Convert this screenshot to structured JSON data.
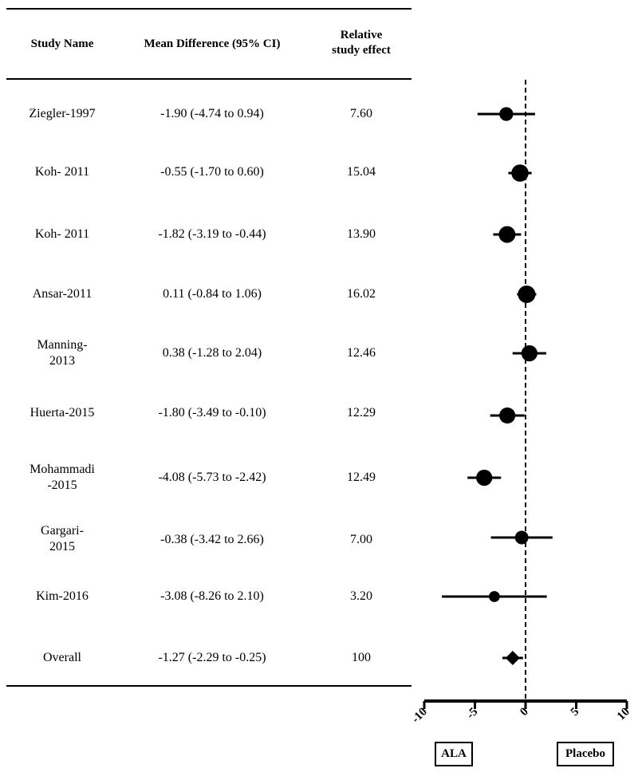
{
  "headers": {
    "study_name": "Study Name",
    "mean_difference": "Mean Difference (95% CI)",
    "relative_effect_line1": "Relative",
    "relative_effect_line2": "study effect"
  },
  "chart_data": {
    "type": "forest",
    "xlim": [
      -10,
      10
    ],
    "xticks": [
      -10,
      -5,
      0,
      5,
      10
    ],
    "xtick_labels": [
      "-10",
      "-5",
      "0",
      "5",
      "10"
    ],
    "reference_line": 0,
    "left_favors_label": "ALA",
    "right_favors_label": "Placebo",
    "studies": [
      {
        "name_line1": "Ziegler-1997",
        "name_line2": "",
        "ci_text": "-1.90 (-4.74 to 0.94)",
        "effect_text": "7.60",
        "mean": -1.9,
        "lower": -4.74,
        "upper": 0.94,
        "weight": 7.6
      },
      {
        "name_line1": "Koh- 2011",
        "name_line2": "",
        "ci_text": "-0.55 (-1.70 to 0.60)",
        "effect_text": "15.04",
        "mean": -0.55,
        "lower": -1.7,
        "upper": 0.6,
        "weight": 15.04
      },
      {
        "name_line1": "Koh- 2011",
        "name_line2": "",
        "ci_text": "-1.82 (-3.19 to -0.44)",
        "effect_text": "13.90",
        "mean": -1.82,
        "lower": -3.19,
        "upper": -0.44,
        "weight": 13.9
      },
      {
        "name_line1": "Ansar-2011",
        "name_line2": "",
        "ci_text": "0.11 (-0.84 to 1.06)",
        "effect_text": "16.02",
        "mean": 0.11,
        "lower": -0.84,
        "upper": 1.06,
        "weight": 16.02
      },
      {
        "name_line1": "Manning-",
        "name_line2": "2013",
        "ci_text": "0.38 (-1.28 to 2.04)",
        "effect_text": "12.46",
        "mean": 0.38,
        "lower": -1.28,
        "upper": 2.04,
        "weight": 12.46
      },
      {
        "name_line1": "Huerta-2015",
        "name_line2": "",
        "ci_text": "-1.80 (-3.49 to -0.10)",
        "effect_text": "12.29",
        "mean": -1.8,
        "lower": -3.49,
        "upper": -0.1,
        "weight": 12.29
      },
      {
        "name_line1": "Mohammadi",
        "name_line2": "-2015",
        "ci_text": "-4.08 (-5.73 to -2.42)",
        "effect_text": "12.49",
        "mean": -4.08,
        "lower": -5.73,
        "upper": -2.42,
        "weight": 12.49
      },
      {
        "name_line1": "Gargari-",
        "name_line2": "2015",
        "ci_text": "-0.38 (-3.42 to 2.66)",
        "effect_text": "7.00",
        "mean": -0.38,
        "lower": -3.42,
        "upper": 2.66,
        "weight": 7.0
      },
      {
        "name_line1": "Kim-2016",
        "name_line2": "",
        "ci_text": "-3.08 (-8.26 to 2.10)",
        "effect_text": "3.20",
        "mean": -3.08,
        "lower": -8.26,
        "upper": 2.1,
        "weight": 3.2
      }
    ],
    "overall": {
      "name": "Overall",
      "ci_text": "-1.27 (-2.29 to -0.25)",
      "effect_text": "100",
      "mean": -1.27,
      "lower": -2.29,
      "upper": -0.25
    }
  }
}
